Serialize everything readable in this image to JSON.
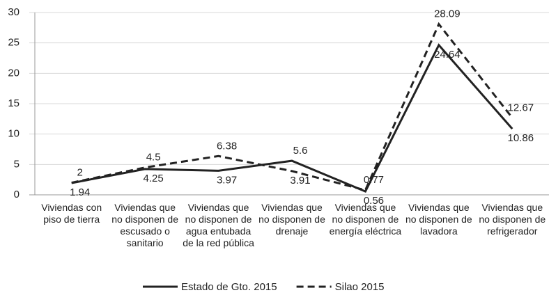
{
  "chart_data": {
    "type": "line",
    "categories": [
      "Viviendas con piso de tierra",
      "Viviendas que no disponen de escusado o sanitario",
      "Viviendas que no disponen de agua entubada de la red pública",
      "Viviendas que no disponen de drenaje",
      "Viviendas que no disponen de energía eléctrica",
      "Viviendas que no disponen de lavadora",
      "Viviendas que no disponen de refrigerador"
    ],
    "series": [
      {
        "name": "Estado de Gto. 2015",
        "color": "#222222",
        "dash": "solid",
        "values": [
          1.94,
          4.25,
          3.97,
          5.6,
          0.56,
          24.64,
          10.86
        ]
      },
      {
        "name": "Silao 2015",
        "color": "#222222",
        "dash": "dashed",
        "values": [
          2,
          4.5,
          6.38,
          3.91,
          0.77,
          28.09,
          12.67
        ]
      }
    ],
    "ylim": [
      0,
      30
    ],
    "yticks": [
      0,
      5,
      10,
      15,
      20,
      25,
      30
    ],
    "grid": true,
    "legend": "bottom"
  }
}
